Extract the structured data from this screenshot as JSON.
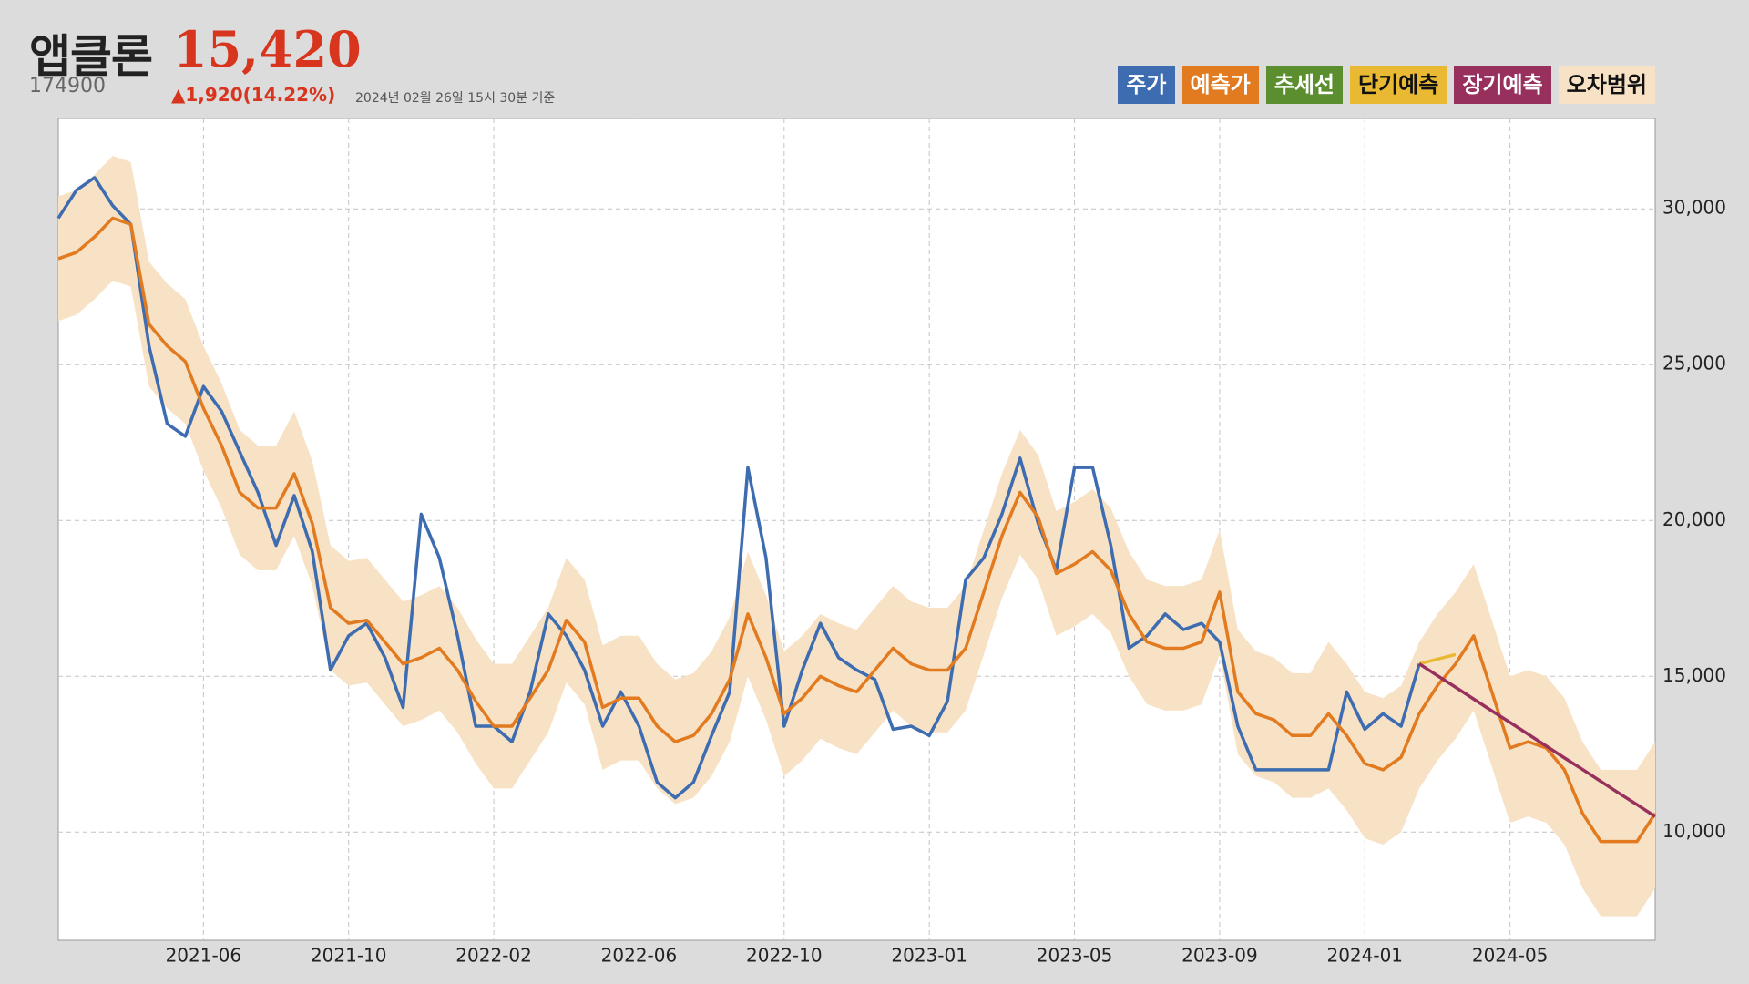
{
  "chart_data": {
    "type": "line",
    "title": "앱클론",
    "price": "15,420",
    "code": "174900",
    "change": "▲1,920(14.22%)",
    "timestamp": "2024년 02월 26일 15시 30분 기준",
    "legend": "top-right",
    "grid": true,
    "ylim": [
      6530,
      32900
    ],
    "yticks": [
      {
        "value": 10000,
        "label": "10,000"
      },
      {
        "value": 15000,
        "label": "15,000"
      },
      {
        "value": 20000,
        "label": "20,000"
      },
      {
        "value": 25000,
        "label": "25,000"
      },
      {
        "value": 30000,
        "label": "30,000"
      }
    ],
    "categories": [
      null,
      null,
      null,
      null,
      null,
      null,
      null,
      null,
      "2021-06",
      null,
      null,
      null,
      null,
      null,
      null,
      null,
      "2021-10",
      null,
      null,
      null,
      null,
      null,
      null,
      null,
      "2022-02",
      null,
      null,
      null,
      null,
      null,
      null,
      null,
      "2022-06",
      null,
      null,
      null,
      null,
      null,
      null,
      null,
      "2022-10",
      null,
      null,
      null,
      null,
      null,
      null,
      null,
      "2023-01",
      null,
      null,
      null,
      null,
      null,
      null,
      null,
      "2023-05",
      null,
      null,
      null,
      null,
      null,
      null,
      null,
      "2023-09",
      null,
      null,
      null,
      null,
      null,
      null,
      null,
      "2024-01",
      null,
      null,
      null,
      null,
      null,
      null,
      null,
      "2024-05",
      null,
      null,
      null,
      null,
      null,
      null,
      null,
      null
    ],
    "series": [
      {
        "name": "주가",
        "color": "#3d6cb0",
        "values": [
          29700,
          30600,
          31000,
          30100,
          29500,
          25600,
          23100,
          22700,
          24300,
          23500,
          22200,
          20900,
          19200,
          20800,
          19000,
          15200,
          16300,
          16700,
          15600,
          14000,
          20200,
          18800,
          16300,
          13400,
          13400,
          12900,
          14500,
          17000,
          16300,
          15200,
          13400,
          14500,
          13400,
          11600,
          11100,
          11600,
          13100,
          14500,
          21700,
          18800,
          13400,
          15200,
          16700,
          15600,
          15200,
          14900,
          13300,
          13400,
          13100,
          14200,
          18100,
          18800,
          20200,
          22000,
          19900,
          18400,
          21700,
          21700,
          19200,
          15900,
          16300,
          17000,
          16500,
          16700,
          16100,
          13400,
          12000,
          12000,
          12000,
          12000,
          12000,
          14500,
          13300,
          13800,
          13400,
          15400,
          null,
          null,
          null,
          null,
          null,
          null,
          null,
          null,
          null,
          null,
          null,
          null,
          null
        ]
      },
      {
        "name": "예측가",
        "color": "#e27a1f",
        "values": [
          28400,
          28600,
          29100,
          29700,
          29500,
          26300,
          25600,
          25100,
          23600,
          22400,
          20900,
          20400,
          20400,
          21500,
          19900,
          17200,
          16700,
          16800,
          16100,
          15400,
          15600,
          15900,
          15200,
          14200,
          13400,
          13400,
          14300,
          15200,
          16800,
          16100,
          14000,
          14300,
          14300,
          13400,
          12900,
          13100,
          13800,
          14900,
          17000,
          15600,
          13800,
          14300,
          15000,
          14700,
          14500,
          15200,
          15900,
          15400,
          15200,
          15200,
          15900,
          17700,
          19500,
          20900,
          20100,
          18300,
          18600,
          19000,
          18400,
          17000,
          16100,
          15900,
          15900,
          16100,
          17700,
          14500,
          13800,
          13600,
          13100,
          13100,
          13800,
          13100,
          12200,
          12000,
          12400,
          13800,
          14700,
          15400,
          16300,
          14500,
          12700,
          12900,
          12700,
          12000,
          10600,
          9700,
          9700,
          9700,
          10600
        ]
      },
      {
        "name": "추세선",
        "color": "#5b8e2f",
        "values": [
          null,
          null,
          null,
          null,
          null,
          null,
          null,
          null,
          null,
          null,
          null,
          null,
          null,
          null,
          null,
          null,
          null,
          null,
          null,
          null,
          null,
          null,
          null,
          null,
          null,
          null,
          null,
          null,
          null,
          null,
          null,
          null,
          null,
          null,
          null,
          null,
          null,
          null,
          null,
          null,
          null,
          null,
          null,
          null,
          null,
          null,
          null,
          null,
          null,
          null,
          null,
          null,
          null,
          null,
          null,
          null,
          null,
          null,
          null,
          null,
          null,
          null,
          null,
          null,
          null,
          null,
          null,
          null,
          null,
          null,
          null,
          null,
          null,
          null,
          null,
          null,
          null,
          null,
          null,
          null,
          null,
          null,
          null,
          null,
          null,
          null,
          null,
          null,
          null
        ]
      },
      {
        "name": "단기예측",
        "color": "#e9b934",
        "values": [
          null,
          null,
          null,
          null,
          null,
          null,
          null,
          null,
          null,
          null,
          null,
          null,
          null,
          null,
          null,
          null,
          null,
          null,
          null,
          null,
          null,
          null,
          null,
          null,
          null,
          null,
          null,
          null,
          null,
          null,
          null,
          null,
          null,
          null,
          null,
          null,
          null,
          null,
          null,
          null,
          null,
          null,
          null,
          null,
          null,
          null,
          null,
          null,
          null,
          null,
          null,
          null,
          null,
          null,
          null,
          null,
          null,
          null,
          null,
          null,
          null,
          null,
          null,
          null,
          null,
          null,
          null,
          null,
          null,
          null,
          null,
          null,
          null,
          null,
          null,
          15400,
          15550,
          15700,
          null,
          null,
          null,
          null,
          null,
          null,
          null,
          null,
          null,
          null,
          null
        ]
      },
      {
        "name": "장기예측",
        "color": "#98305e",
        "values": [
          null,
          null,
          null,
          null,
          null,
          null,
          null,
          null,
          null,
          null,
          null,
          null,
          null,
          null,
          null,
          null,
          null,
          null,
          null,
          null,
          null,
          null,
          null,
          null,
          null,
          null,
          null,
          null,
          null,
          null,
          null,
          null,
          null,
          null,
          null,
          null,
          null,
          null,
          null,
          null,
          null,
          null,
          null,
          null,
          null,
          null,
          null,
          null,
          null,
          null,
          null,
          null,
          null,
          null,
          null,
          null,
          null,
          null,
          null,
          null,
          null,
          null,
          null,
          null,
          null,
          null,
          null,
          null,
          null,
          null,
          null,
          null,
          null,
          null,
          null,
          15400,
          15020,
          14650,
          14270,
          13890,
          13520,
          13140,
          12760,
          12380,
          12010,
          11630,
          11250,
          10880,
          10500
        ]
      },
      {
        "name": "오차범위",
        "color": "#f8e2c6",
        "upper": [
          30400,
          30600,
          31100,
          31700,
          31500,
          28300,
          27600,
          27100,
          25600,
          24400,
          22900,
          22400,
          22400,
          23500,
          21900,
          19200,
          18700,
          18800,
          18100,
          17400,
          17600,
          17900,
          17200,
          16200,
          15400,
          15400,
          16300,
          17200,
          18800,
          18100,
          16000,
          16300,
          16300,
          15400,
          14900,
          15100,
          15800,
          16900,
          19000,
          17600,
          15800,
          16300,
          17000,
          16700,
          16500,
          17200,
          17900,
          17400,
          17200,
          17200,
          17900,
          19700,
          21500,
          22900,
          22100,
          20300,
          20600,
          21000,
          20400,
          19000,
          18100,
          17900,
          17900,
          18100,
          19700,
          16500,
          15800,
          15600,
          15100,
          15100,
          16100,
          15400,
          14500,
          14300,
          14700,
          16100,
          17000,
          17700,
          18600,
          16800,
          15000,
          15200,
          15000,
          14300,
          12900,
          12000,
          12000,
          12000,
          12900
        ],
        "lower": [
          26400,
          26600,
          27100,
          27700,
          27500,
          24300,
          23600,
          23100,
          21600,
          20400,
          18900,
          18400,
          18400,
          19500,
          17900,
          15200,
          14700,
          14800,
          14100,
          13400,
          13600,
          13900,
          13200,
          12200,
          11400,
          11400,
          12300,
          13200,
          14800,
          14100,
          12000,
          12300,
          12300,
          11400,
          10900,
          11100,
          11800,
          12900,
          15000,
          13600,
          11800,
          12300,
          13000,
          12700,
          12500,
          13200,
          13900,
          13400,
          13200,
          13200,
          13900,
          15700,
          17500,
          18900,
          18100,
          16300,
          16600,
          17000,
          16400,
          15000,
          14100,
          13900,
          13900,
          14100,
          15700,
          12500,
          11800,
          11600,
          11100,
          11100,
          11400,
          10700,
          9800,
          9600,
          10000,
          11400,
          12300,
          13000,
          13900,
          12100,
          10300,
          10500,
          10300,
          9600,
          8200,
          7300,
          7300,
          7300,
          8200
        ]
      }
    ]
  }
}
